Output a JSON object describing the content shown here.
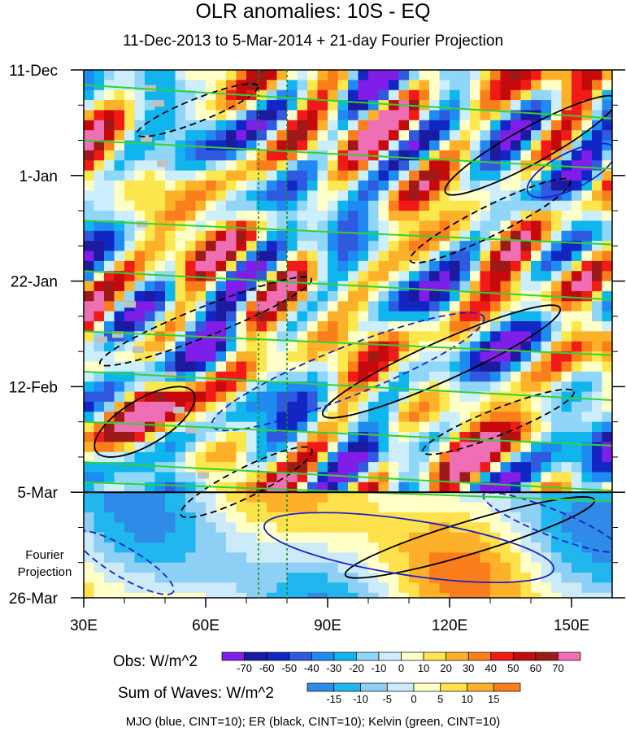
{
  "chart_data": {
    "type": "heatmap",
    "title": "OLR anomalies: 10S - EQ",
    "subtitle": "11-Dec-2013 to 5-Mar-2014 + 21-day Fourier Projection",
    "x_ticks": [
      {
        "label": "30E",
        "value": 30
      },
      {
        "label": "60E",
        "value": 60
      },
      {
        "label": "90E",
        "value": 90
      },
      {
        "label": "120E",
        "value": 120
      },
      {
        "label": "150E",
        "value": 150
      }
    ],
    "xlim": [
      30,
      160
    ],
    "y_ticks": [
      {
        "label": "11-Dec",
        "day": 0
      },
      {
        "label": "1-Jan",
        "day": 21
      },
      {
        "label": "22-Jan",
        "day": 42
      },
      {
        "label": "12-Feb",
        "day": 63
      },
      {
        "label": "5-Mar",
        "day": 84
      },
      {
        "label": "26-Mar",
        "day": 105
      }
    ],
    "ylim_days": [
      0,
      105
    ],
    "projection_start_day": 84,
    "projection_label": "Fourier Projection",
    "dotted_lines_lon": [
      73,
      80
    ],
    "obs_colorbar": {
      "label": "Obs: W/m^2",
      "levels": [
        -70,
        -60,
        -50,
        -40,
        -30,
        -20,
        -10,
        0,
        10,
        20,
        30,
        40,
        50,
        60,
        70
      ],
      "colors": [
        "#7f1ee8",
        "#1c1a9e",
        "#1226c4",
        "#2f5ae0",
        "#1f8bf2",
        "#0fb5ec",
        "#8fd6f8",
        "#cdeefc",
        "#ffffc8",
        "#fde74f",
        "#fdb12a",
        "#fa7e1c",
        "#f21a16",
        "#c60a0c",
        "#9e1a18",
        "#ee6fb3"
      ]
    },
    "wave_colorbar": {
      "label": "Sum of Waves: W/m^2",
      "levels": [
        -15,
        -10,
        -5,
        0,
        5,
        10,
        15
      ],
      "colors": [
        "#2f8ae8",
        "#22b6ee",
        "#8ecff5",
        "#cdeaf9",
        "#ffffc8",
        "#fde24e",
        "#fdb12a",
        "#fa7e1c"
      ]
    },
    "caption": "MJO (blue, CINT=10); ER (black, CINT=10); Kelvin (green, CINT=10)",
    "contour_colors": {
      "mjo": "#1820c8",
      "er": "#000000",
      "kelvin": "#32d232",
      "missing": "#c0c0c0"
    }
  }
}
